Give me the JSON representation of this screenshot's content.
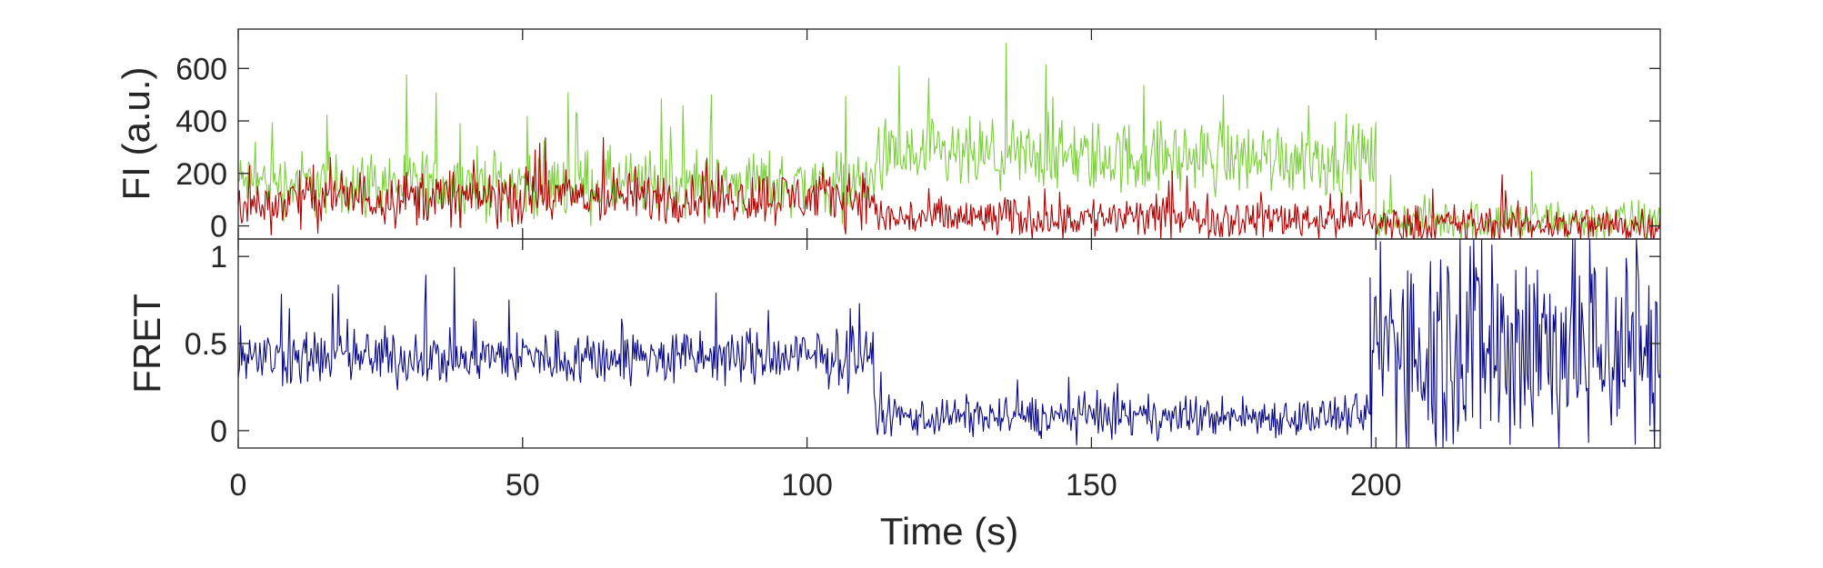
{
  "chart_data": [
    {
      "type": "line",
      "panel": "top",
      "ylabel": "FI (a.u.)",
      "xlabel": "",
      "xlim": [
        0,
        250
      ],
      "ylim": [
        -50,
        750
      ],
      "yticks": [
        0,
        200,
        400,
        600
      ],
      "xticks_labeled": false,
      "grid": false,
      "series": [
        {
          "color": "#7ccf3c",
          "sampling": "piecewise-constant mean level with noise",
          "segments": [
            {
              "x": [
                0,
                8
              ],
              "mean": 170,
              "noise": 90
            },
            {
              "x": [
                8,
                112
              ],
              "mean": 160,
              "noise": 110
            },
            {
              "x": [
                112,
                200
              ],
              "mean": 260,
              "noise": 120
            },
            {
              "x": [
                200,
                250
              ],
              "mean": 20,
              "noise": 70
            }
          ]
        },
        {
          "color": "#b30000",
          "sampling": "piecewise-constant mean level with noise",
          "segments": [
            {
              "x": [
                0,
                8
              ],
              "mean": 80,
              "noise": 80
            },
            {
              "x": [
                8,
                112
              ],
              "mean": 110,
              "noise": 90
            },
            {
              "x": [
                112,
                200
              ],
              "mean": 30,
              "noise": 70
            },
            {
              "x": [
                200,
                250
              ],
              "mean": 5,
              "noise": 65
            }
          ]
        }
      ]
    },
    {
      "type": "line",
      "panel": "bottom",
      "ylabel": "FRET",
      "xlabel": "Time (s)",
      "xlim": [
        0,
        250
      ],
      "ylim": [
        -0.1,
        1.1
      ],
      "yticks": [
        0,
        0.5,
        1
      ],
      "xticks": [
        0,
        50,
        100,
        150,
        200
      ],
      "grid": false,
      "series": [
        {
          "color": "#0a0a8c",
          "sampling": "piecewise-constant mean level with noise",
          "segments": [
            {
              "x": [
                0,
                112
              ],
              "mean": 0.42,
              "noise": 0.14
            },
            {
              "x": [
                112,
                199
              ],
              "mean": 0.08,
              "noise": 0.1
            },
            {
              "x": [
                199,
                250
              ],
              "mean": 0.5,
              "noise": 0.6
            }
          ]
        }
      ]
    }
  ],
  "labels": {
    "top_yticks": [
      "0",
      "200",
      "400",
      "600"
    ],
    "bottom_yticks": [
      "0",
      "0.5",
      "1"
    ],
    "xticks": [
      "0",
      "50",
      "100",
      "150",
      "200"
    ],
    "top_ylabel": "FI (a.u.)",
    "bottom_ylabel": "FRET",
    "xlabel": "Time (s)"
  }
}
